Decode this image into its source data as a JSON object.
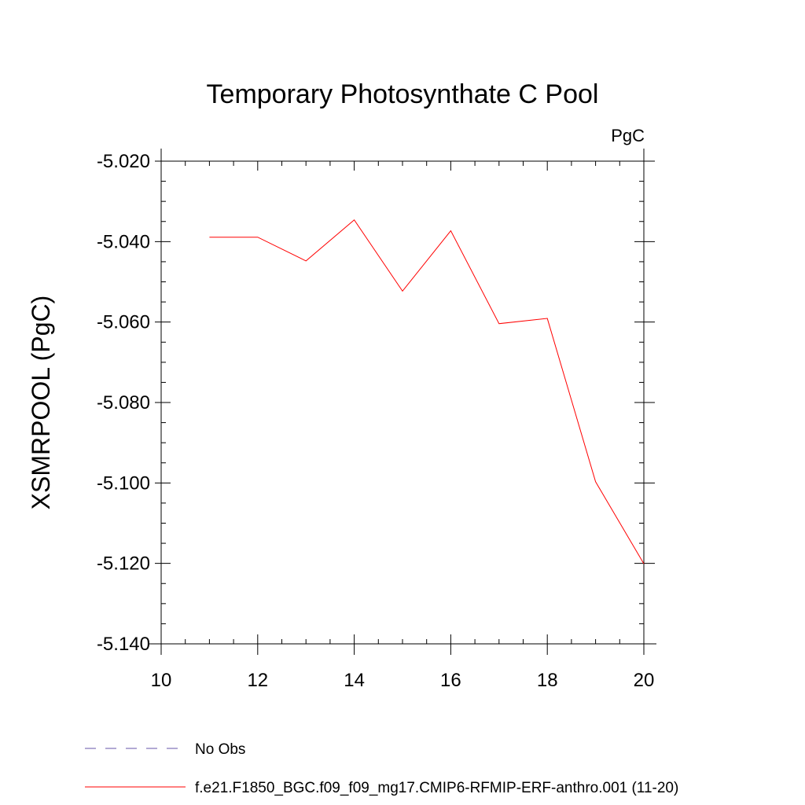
{
  "chart_data": {
    "type": "line",
    "title": "Temporary Photosynthate C Pool",
    "units_label": "PgC",
    "ylabel": "XSMRPOOL  (PgC)",
    "xlabel": "",
    "xlim": [
      10,
      20
    ],
    "ylim": [
      -5.14,
      -5.02
    ],
    "xticks": [
      10,
      12,
      14,
      16,
      18,
      20
    ],
    "xtick_labels": [
      "10",
      "12",
      "14",
      "16",
      "18",
      "20"
    ],
    "yticks": [
      -5.02,
      -5.04,
      -5.06,
      -5.08,
      -5.1,
      -5.12,
      -5.14
    ],
    "ytick_labels": [
      "-5.020",
      "-5.040",
      "-5.060",
      "-5.080",
      "-5.100",
      "-5.120",
      "-5.140"
    ],
    "grid": false,
    "series": [
      {
        "name": "f.e21.F1850_BGC.f09_f09_mg17.CMIP6-RFMIP-ERF-anthro.001 (11-20)",
        "color": "#ff0000",
        "style": "solid",
        "x": [
          11,
          12,
          13,
          14,
          15,
          16,
          17,
          18,
          19,
          20
        ],
        "values": [
          -5.0389,
          -5.0389,
          -5.0448,
          -5.0346,
          -5.0523,
          -5.0373,
          -5.0604,
          -5.0591,
          -5.0997,
          -5.1201
        ]
      }
    ],
    "legend": [
      {
        "label": "No Obs",
        "color": "#6655aa",
        "style": "dashed"
      },
      {
        "label": "f.e21.F1850_BGC.f09_f09_mg17.CMIP6-RFMIP-ERF-anthro.001 (11-20)",
        "color": "#ff0000",
        "style": "solid"
      }
    ],
    "legend_position": "bottom-left"
  }
}
